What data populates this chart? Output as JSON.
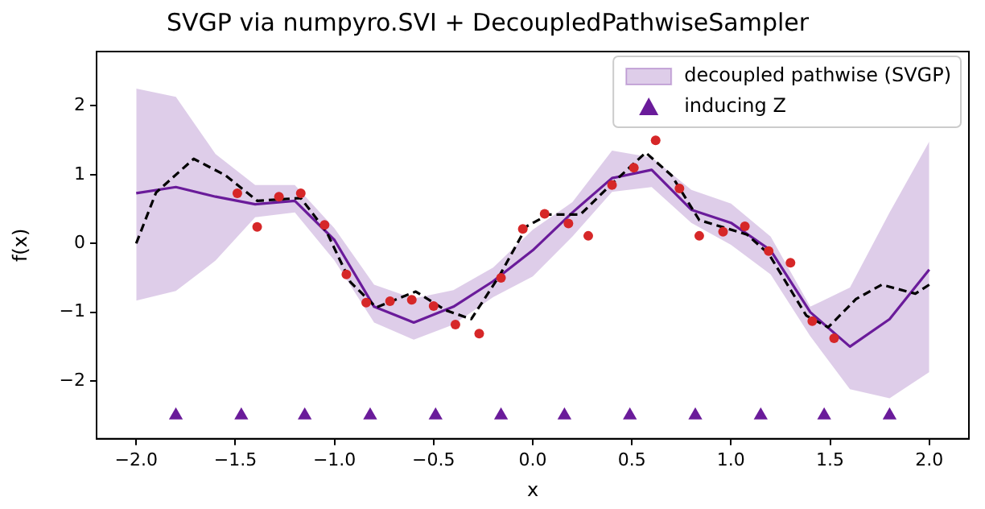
{
  "chart_data": {
    "type": "line",
    "title": "SVGP via numpyro.SVI + DecoupledPathwiseSampler",
    "xlabel": "x",
    "ylabel": "f(x)",
    "xlim": [
      -2.2,
      2.2
    ],
    "ylim": [
      -2.84,
      2.79
    ],
    "xticks": [
      {
        "value": -2,
        "label": "−2.0"
      },
      {
        "value": -1.5,
        "label": "−1.5"
      },
      {
        "value": -1,
        "label": "−1.0"
      },
      {
        "value": -0.5,
        "label": "−0.5"
      },
      {
        "value": 0,
        "label": "0.0"
      },
      {
        "value": 0.5,
        "label": "0.5"
      },
      {
        "value": 1,
        "label": "1.0"
      },
      {
        "value": 1.5,
        "label": "1.5"
      },
      {
        "value": 2,
        "label": "2.0"
      }
    ],
    "yticks": [
      {
        "value": -2,
        "label": "−2"
      },
      {
        "value": -1,
        "label": "−1"
      },
      0,
      1,
      2
    ],
    "grid": false,
    "legend": "top right",
    "series": [
      {
        "name": "decoupled pathwise (SVGP)",
        "color": "#6a1b9a",
        "marker": "none",
        "line_style": "solid",
        "x": [
          -2.0,
          -1.8,
          -1.6,
          -1.4,
          -1.2,
          -1.0,
          -0.8,
          -0.6,
          -0.4,
          -0.2,
          0.0,
          0.2,
          0.4,
          0.6,
          0.8,
          1.0,
          1.2,
          1.4,
          1.6,
          1.8,
          2.0
        ],
        "values": [
          0.73,
          0.82,
          0.68,
          0.57,
          0.62,
          0.05,
          -0.92,
          -1.15,
          -0.92,
          -0.55,
          -0.1,
          0.45,
          0.95,
          1.07,
          0.49,
          0.3,
          -0.1,
          -1.0,
          -1.5,
          -1.1,
          -0.38
        ],
        "lower": [
          -0.83,
          -0.69,
          -0.25,
          0.38,
          0.45,
          -0.25,
          -1.15,
          -1.4,
          -1.18,
          -0.78,
          -0.48,
          0.1,
          0.75,
          0.82,
          0.3,
          -0.02,
          -0.45,
          -1.35,
          -2.12,
          -2.25,
          -1.87
        ],
        "upper": [
          2.25,
          2.13,
          1.3,
          0.85,
          0.85,
          0.22,
          -0.6,
          -0.8,
          -0.68,
          -0.35,
          0.2,
          0.6,
          1.35,
          1.25,
          0.78,
          0.58,
          0.1,
          -0.92,
          -0.64,
          0.45,
          1.48
        ]
      },
      {
        "color": "#000000",
        "marker": "none",
        "line_style": "dashed",
        "x": [
          -2.0,
          -1.9,
          -1.71,
          -1.55,
          -1.39,
          -1.17,
          -1.04,
          -0.92,
          -0.79,
          -0.59,
          -0.44,
          -0.31,
          -0.17,
          -0.03,
          0.08,
          0.24,
          0.4,
          0.57,
          0.7,
          0.84,
          1.08,
          1.19,
          1.38,
          1.49,
          1.63,
          1.76,
          1.93,
          2.0
        ],
        "values": [
          0.0,
          0.74,
          1.23,
          0.99,
          0.62,
          0.66,
          0.17,
          -0.56,
          -0.93,
          -0.7,
          -0.97,
          -1.1,
          -0.48,
          0.25,
          0.42,
          0.42,
          0.87,
          1.32,
          0.99,
          0.34,
          0.13,
          -0.15,
          -1.05,
          -1.22,
          -0.81,
          -0.6,
          -0.73,
          -0.6
        ]
      },
      {
        "type": "scatter",
        "color": "#d62728",
        "marker": "circle",
        "x": [
          -1.49,
          -1.39,
          -1.28,
          -1.17,
          -1.05,
          -0.94,
          -0.84,
          -0.72,
          -0.61,
          -0.5,
          -0.39,
          -0.27,
          -0.16,
          -0.05,
          0.06,
          0.18,
          0.28,
          0.4,
          0.51,
          0.62,
          0.74,
          0.84,
          0.96,
          1.07,
          1.19,
          1.3,
          1.41,
          1.52
        ],
        "values": [
          0.73,
          0.24,
          0.68,
          0.73,
          0.27,
          -0.45,
          -0.86,
          -0.84,
          -0.82,
          -0.91,
          -1.18,
          -1.31,
          -0.5,
          0.21,
          0.43,
          0.29,
          0.11,
          0.85,
          1.1,
          1.5,
          0.8,
          0.11,
          0.17,
          0.25,
          -0.11,
          -0.28,
          -1.13,
          -1.38
        ]
      },
      {
        "type": "scatter",
        "name": "inducing Z",
        "color": "#6a1b9a",
        "marker": "triangle",
        "x": [
          -1.8,
          -1.47,
          -1.15,
          -0.82,
          -0.49,
          -0.16,
          0.16,
          0.49,
          0.82,
          1.15,
          1.47,
          1.8
        ],
        "values": [
          -2.5,
          -2.5,
          -2.5,
          -2.5,
          -2.5,
          -2.5,
          -2.5,
          -2.5,
          -2.5,
          -2.5,
          -2.5,
          -2.5
        ]
      }
    ]
  }
}
